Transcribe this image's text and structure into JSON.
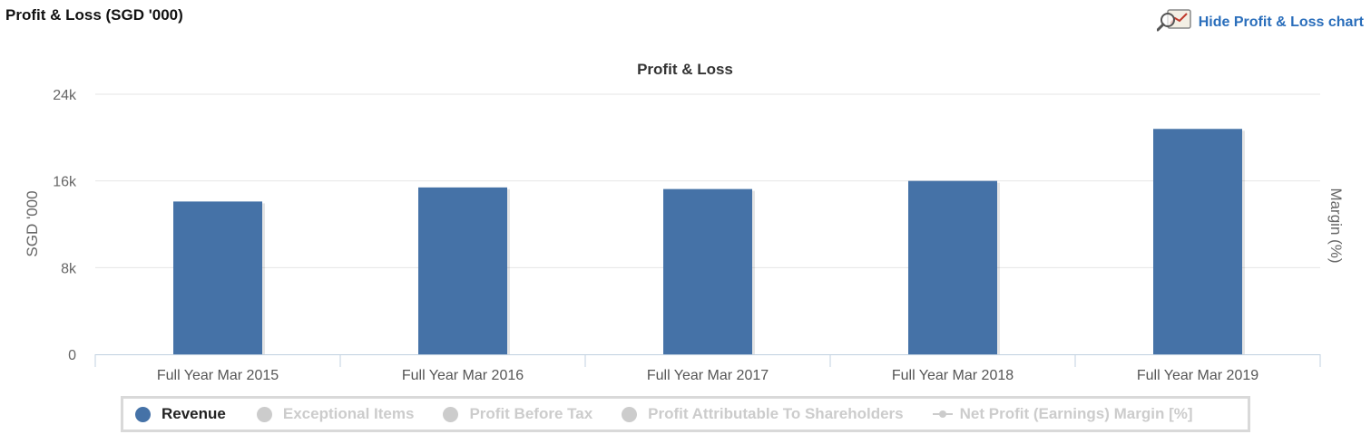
{
  "header": {
    "title": "Profit & Loss (SGD '000)",
    "toggle_label": "Hide Profit & Loss chart",
    "toggle_icon": "magnifier-chart-icon"
  },
  "colors": {
    "bar": "#4572a7",
    "link": "#2a6ebb",
    "grid": "#e6e6e6",
    "axis": "#c0d0e0",
    "legend_inactive": "#cccccc"
  },
  "chart_data": {
    "type": "bar",
    "title": "Profit & Loss",
    "ylabel": "SGD '000",
    "y2label": "Margin (%)",
    "categories": [
      "Full Year Mar 2015",
      "Full Year Mar 2016",
      "Full Year Mar 2017",
      "Full Year Mar 2018",
      "Full Year Mar 2019"
    ],
    "series": [
      {
        "name": "Revenue",
        "values": [
          14100,
          15400,
          15250,
          16000,
          20800
        ],
        "visible": true
      }
    ],
    "ylim": [
      0,
      24000
    ],
    "yticks": [
      {
        "value": 0,
        "label": "0"
      },
      {
        "value": 8000,
        "label": "8k"
      },
      {
        "value": 16000,
        "label": "16k"
      },
      {
        "value": 24000,
        "label": "24k"
      }
    ],
    "grid": true,
    "legend_position": "bottom",
    "legend": [
      {
        "label": "Revenue",
        "active": true,
        "marker": "dot"
      },
      {
        "label": "Exceptional Items",
        "active": false,
        "marker": "dot"
      },
      {
        "label": "Profit Before Tax",
        "active": false,
        "marker": "dot"
      },
      {
        "label": "Profit Attributable To Shareholders",
        "active": false,
        "marker": "dot"
      },
      {
        "label": "Net Profit (Earnings) Margin [%]",
        "active": false,
        "marker": "line-dot"
      }
    ]
  }
}
